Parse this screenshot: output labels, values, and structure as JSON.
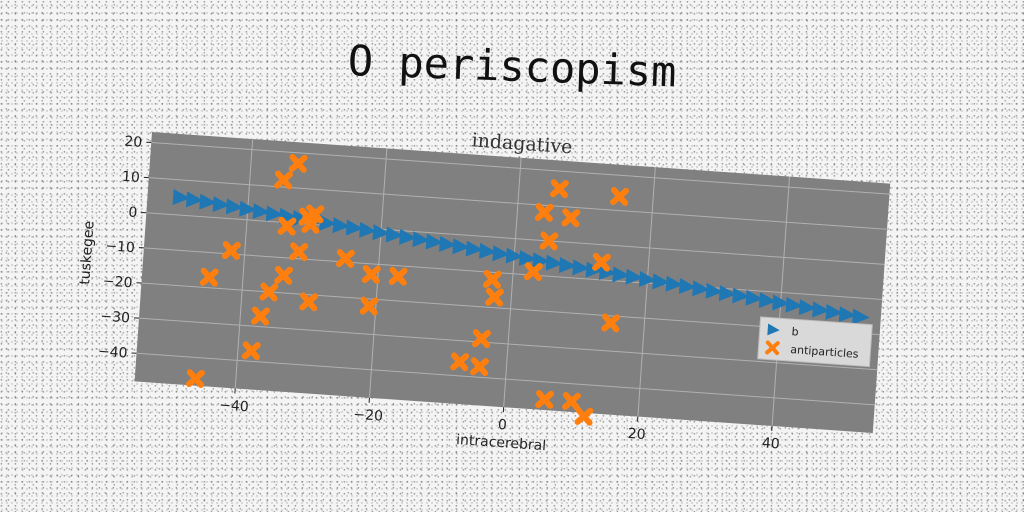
{
  "title": "O periscopism",
  "colors": {
    "series_b": "#1f77b4",
    "series_antiparticles": "#ff7f0e",
    "plot_bg": "#808080"
  },
  "chart_data": {
    "type": "scatter",
    "subtitle": "indagative",
    "xlabel": "intracerebral",
    "ylabel": "tuskegee",
    "xlim": [
      -55,
      55
    ],
    "ylim": [
      -48,
      23
    ],
    "xticks": [
      -40,
      -20,
      0,
      20,
      40
    ],
    "yticks": [
      20,
      10,
      0,
      -10,
      -20,
      -30,
      -40
    ],
    "grid": true,
    "legend_position": "right",
    "series": [
      {
        "name": "b",
        "marker": "triangle-right",
        "x": [
          -50,
          -48,
          -46,
          -44,
          -42,
          -40,
          -38,
          -36,
          -34,
          -32,
          -30,
          -28,
          -26,
          -24,
          -22,
          -20,
          -18,
          -16,
          -14,
          -12,
          -10,
          -8,
          -6,
          -4,
          -2,
          0,
          2,
          4,
          6,
          8,
          10,
          12,
          14,
          16,
          18,
          20,
          22,
          24,
          26,
          28,
          30,
          32,
          34,
          36,
          38,
          40,
          42,
          44,
          46,
          48,
          50,
          52
        ],
        "y": [
          5.0,
          4.6,
          4.2,
          3.8,
          3.4,
          3.0,
          2.6,
          2.2,
          1.8,
          1.4,
          1.0,
          0.6,
          0.2,
          -0.2,
          -0.6,
          -1.0,
          -1.4,
          -1.8,
          -2.2,
          -2.6,
          -3.0,
          -3.4,
          -3.8,
          -4.2,
          -4.6,
          -5.0,
          -5.4,
          -5.8,
          -6.2,
          -6.6,
          -7.0,
          -7.4,
          -7.8,
          -8.2,
          -8.6,
          -9.0,
          -9.4,
          -9.8,
          -10.2,
          -10.6,
          -11.0,
          -11.4,
          -11.8,
          -12.2,
          -12.6,
          -13.0,
          -13.4,
          -13.8,
          -14.2,
          -14.6,
          -15.0,
          -15.4
        ]
      },
      {
        "name": "antiparticles",
        "marker": "x",
        "x": [
          -33,
          -35,
          -31,
          -30,
          -30.5,
          -34,
          -42,
          -32,
          -45,
          -34,
          -36,
          -30,
          -37,
          -38,
          -46,
          -25,
          -21,
          -17,
          -21,
          -7,
          -4,
          -4,
          -3,
          -2.5,
          4,
          3,
          6,
          5,
          8,
          13,
          15,
          15,
          6,
          10,
          12
        ],
        "y": [
          17,
          12,
          2,
          3,
          0,
          -1,
          -9,
          -8,
          -17,
          -15,
          -20,
          -22,
          -27,
          -37,
          -46,
          -9,
          -13,
          -13,
          -22,
          -36,
          -29,
          -37,
          -12,
          -17,
          8,
          -9,
          15,
          0,
          7,
          -5,
          14,
          -22,
          -45,
          -45,
          -49
        ]
      }
    ]
  }
}
